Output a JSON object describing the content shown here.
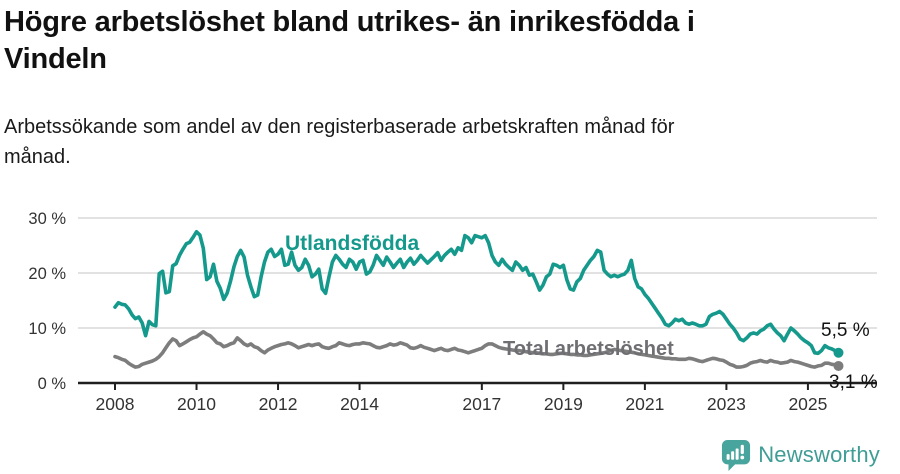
{
  "header": {
    "title_lines": [
      "Högre arbetslöshet bland utrikes- än inrikesfödda i",
      "Vindeln"
    ],
    "subtitle_lines": [
      "Arbetssökande som andel av den registerbaserade arbetskraften månad för",
      "månad."
    ]
  },
  "chart_data": {
    "type": "line",
    "unit": "%",
    "x_start_year": 2008,
    "points_per_year": 12,
    "x_tick_years": [
      2008,
      2010,
      2012,
      2014,
      2017,
      2019,
      2021,
      2023,
      2025
    ],
    "y_ticks": [
      {
        "value": 30,
        "label": "30 %"
      },
      {
        "value": 20,
        "label": "20 %"
      },
      {
        "value": 10,
        "label": "10 %"
      },
      {
        "value": 0,
        "label": "0 %"
      }
    ],
    "ylim": [
      0,
      30
    ],
    "grid": true,
    "axis_color": "#1f1f1f",
    "grid_color": "#d9d9d9",
    "tick_label_color": "#333333",
    "end_label_color": "#111111",
    "series": [
      {
        "name": "Utlandsfödda",
        "color": "#14998c",
        "label_color": "#14998c",
        "end_label": "5,5 %",
        "end_value": 5.5,
        "values": [
          13.8,
          14.6,
          14.3,
          14.2,
          13.5,
          12.4,
          11.7,
          12.0,
          10.9,
          8.6,
          11.2,
          10.6,
          10.4,
          19.9,
          20.3,
          16.4,
          16.6,
          21.3,
          21.7,
          23.2,
          24.3,
          25.3,
          25.6,
          26.5,
          27.5,
          26.9,
          24.5,
          18.8,
          19.3,
          21.6,
          18.5,
          17.2,
          15.2,
          16.3,
          18.5,
          21.1,
          23.0,
          24.1,
          22.9,
          19.6,
          17.5,
          15.7,
          16.0,
          19.3,
          22.0,
          23.8,
          24.3,
          23.0,
          23.4,
          24.3,
          21.4,
          21.6,
          23.8,
          21.4,
          20.5,
          21.0,
          22.5,
          21.4,
          19.3,
          19.8,
          20.7,
          17.1,
          16.3,
          19.3,
          22.0,
          23.2,
          22.5,
          21.6,
          21.0,
          22.5,
          22.0,
          20.7,
          22.0,
          22.3,
          19.8,
          20.2,
          21.4,
          23.2,
          22.3,
          21.4,
          22.9,
          22.0,
          21.0,
          21.8,
          22.5,
          21.0,
          22.0,
          22.7,
          21.6,
          22.3,
          23.2,
          22.5,
          21.8,
          22.4,
          23.0,
          23.7,
          22.3,
          23.2,
          23.8,
          24.3,
          23.4,
          24.6,
          24.1,
          26.8,
          26.4,
          25.5,
          26.8,
          26.6,
          26.4,
          26.8,
          25.5,
          23.2,
          22.0,
          21.4,
          22.5,
          21.6,
          21.0,
          20.5,
          22.0,
          21.4,
          20.5,
          21.0,
          19.6,
          19.8,
          18.4,
          16.9,
          17.8,
          19.3,
          19.8,
          21.6,
          21.4,
          21.0,
          21.4,
          18.8,
          17.1,
          16.9,
          18.4,
          19.0,
          20.5,
          21.4,
          22.3,
          23.0,
          24.1,
          23.8,
          20.5,
          19.8,
          19.3,
          19.6,
          19.3,
          19.6,
          19.8,
          20.5,
          22.3,
          19.0,
          17.5,
          17.1,
          16.1,
          15.4,
          14.5,
          13.6,
          12.7,
          11.8,
          10.7,
          10.4,
          10.9,
          11.6,
          11.3,
          11.6,
          10.9,
          10.7,
          10.9,
          10.7,
          10.4,
          10.4,
          10.7,
          12.1,
          12.5,
          12.7,
          13.0,
          12.5,
          11.6,
          10.7,
          10.0,
          9.1,
          8.0,
          7.7,
          8.2,
          8.9,
          9.1,
          8.9,
          9.5,
          9.8,
          10.4,
          10.7,
          9.8,
          9.1,
          8.6,
          7.7,
          8.9,
          10.0,
          9.5,
          8.9,
          8.2,
          7.7,
          7.3,
          6.8,
          5.5,
          5.4,
          5.9,
          6.8,
          6.4,
          6.2,
          5.9,
          5.5
        ]
      },
      {
        "name": "Total arbetslöshet",
        "color": "#7d7d7d",
        "label_color": "#6e6e73",
        "end_label": "3,1 %",
        "end_value": 3.1,
        "values": [
          4.8,
          4.6,
          4.3,
          4.1,
          3.6,
          3.2,
          2.9,
          3.0,
          3.4,
          3.6,
          3.8,
          4.0,
          4.3,
          4.8,
          5.5,
          6.4,
          7.3,
          8.0,
          7.7,
          6.8,
          7.1,
          7.5,
          7.9,
          8.2,
          8.4,
          8.9,
          9.3,
          8.9,
          8.6,
          8.0,
          7.3,
          7.1,
          6.6,
          6.8,
          7.1,
          7.3,
          8.2,
          7.7,
          7.1,
          6.8,
          7.1,
          6.6,
          6.4,
          5.9,
          5.5,
          6.0,
          6.3,
          6.6,
          6.8,
          7.0,
          7.1,
          7.3,
          7.1,
          6.8,
          6.4,
          6.6,
          6.8,
          7.0,
          6.8,
          7.0,
          7.1,
          6.6,
          6.4,
          6.3,
          6.6,
          6.8,
          7.3,
          7.1,
          6.9,
          6.8,
          7.0,
          7.1,
          7.1,
          7.3,
          7.2,
          7.1,
          6.8,
          6.5,
          6.4,
          6.6,
          6.8,
          7.1,
          6.9,
          7.0,
          7.3,
          7.1,
          6.9,
          6.4,
          6.3,
          6.5,
          6.8,
          6.5,
          6.3,
          6.1,
          5.9,
          6.1,
          6.3,
          6.0,
          5.9,
          6.1,
          6.3,
          6.0,
          5.9,
          5.7,
          5.5,
          5.7,
          5.9,
          6.1,
          6.3,
          6.8,
          7.1,
          7.1,
          6.8,
          6.5,
          6.3,
          6.2,
          6.1,
          6.0,
          5.9,
          5.9,
          5.8,
          5.7,
          5.6,
          5.5,
          5.5,
          5.4,
          5.3,
          5.3,
          5.2,
          5.2,
          5.3,
          5.4,
          5.4,
          5.3,
          5.2,
          5.2,
          5.1,
          5.1,
          5.0,
          5.0,
          5.1,
          5.2,
          5.3,
          5.4,
          5.5,
          5.7,
          5.9,
          6.1,
          6.0,
          5.9,
          5.8,
          5.7,
          5.6,
          5.5,
          5.3,
          5.2,
          5.1,
          5.0,
          4.9,
          4.8,
          4.7,
          4.6,
          4.5,
          4.5,
          4.4,
          4.4,
          4.3,
          4.3,
          4.3,
          4.5,
          4.4,
          4.2,
          4.0,
          3.9,
          4.1,
          4.3,
          4.5,
          4.4,
          4.2,
          4.1,
          3.8,
          3.4,
          3.2,
          2.9,
          2.9,
          3.0,
          3.2,
          3.6,
          3.8,
          3.9,
          4.1,
          3.9,
          3.8,
          4.1,
          3.9,
          3.8,
          3.6,
          3.7,
          3.8,
          4.1,
          3.9,
          3.8,
          3.6,
          3.4,
          3.2,
          3.0,
          2.9,
          3.1,
          3.2,
          3.6,
          3.6,
          3.4,
          3.3,
          3.1
        ]
      }
    ]
  },
  "footer": {
    "brand": "Newsworthy",
    "brand_color": "#3f9d96",
    "logo_icon": "barchart-speech-bubble-icon",
    "logo_color": "#47a59d"
  }
}
